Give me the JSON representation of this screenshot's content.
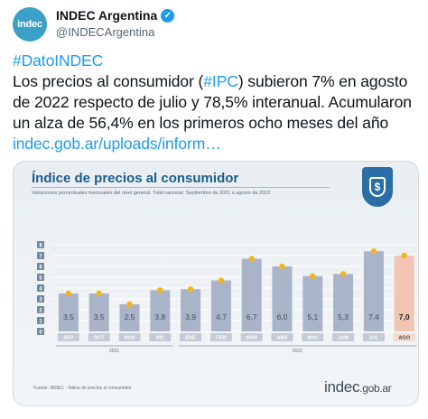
{
  "account": {
    "avatar_text": "indec",
    "display_name": "INDEC Argentina",
    "verified_glyph": "✓",
    "handle": "@INDECArgentina"
  },
  "tweet": {
    "hashtag": "#DatoINDEC",
    "line_a": "Los precios al consumidor (",
    "ipc_tag": "#IPC",
    "line_b": ") subieron 7% en agosto de 2022 respecto de julio y 78,5% interanual. Acumularon un alza de 56,4% en los primeros ocho meses del año ",
    "link": "indec.gob.ar/uploads/inform…"
  },
  "card": {
    "title": "Índice de precios al consumidor",
    "subtitle": "Variaciones porcentuales mensuales del nivel general. Total nacional. Septiembre de 2021 a agosto de 2022",
    "source": "Fuente: INDEC - Índice de precios al consumidor",
    "brand_main": "indec",
    "brand_suffix": ".gob.ar",
    "badge_glyph": "$",
    "colors": {
      "bar": "#aab4c9",
      "highlight": "#f2c4b4",
      "dot": "#f2b51b",
      "title": "#1b5d8c"
    }
  },
  "chart_data": {
    "type": "bar",
    "categories": [
      "SEP",
      "OCT",
      "NOV",
      "DIC",
      "ENE",
      "FEB",
      "MAR",
      "ABR",
      "MAY",
      "JUN",
      "JUL",
      "AGO"
    ],
    "values": [
      3.5,
      3.5,
      2.5,
      3.8,
      3.9,
      4.7,
      6.7,
      6.0,
      5.1,
      5.3,
      7.4,
      7.0
    ],
    "value_labels": [
      "3,5",
      "3,5",
      "2,5",
      "3,8",
      "3,9",
      "4,7",
      "6,7",
      "6,0",
      "5,1",
      "5,3",
      "7,4",
      "7,0"
    ],
    "years": [
      {
        "label": "2021",
        "from": 0,
        "to": 3
      },
      {
        "label": "2022",
        "from": 4,
        "to": 11
      }
    ],
    "y_ticks": [
      0,
      1,
      2,
      3,
      4,
      5,
      6,
      7,
      8
    ],
    "ylim": [
      0,
      8
    ],
    "highlight_index": 11
  }
}
